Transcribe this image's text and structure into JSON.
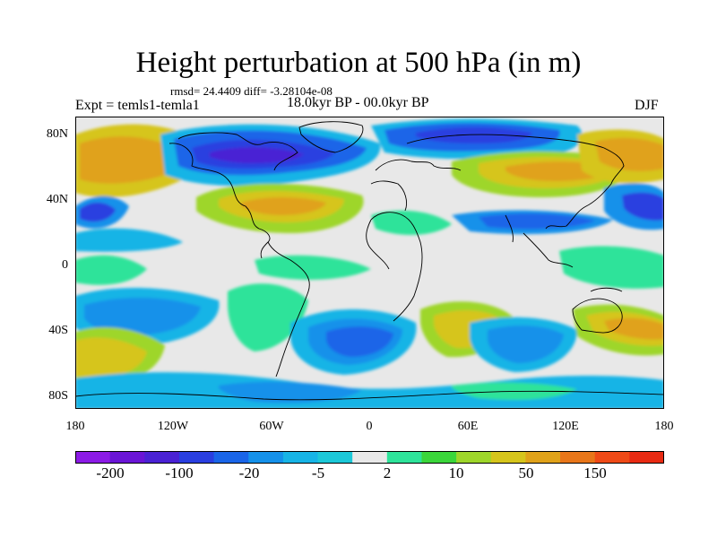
{
  "title": "Height perturbation at 500 hPa (in m)",
  "stats": "rmsd= 24.4409 diff= -3.28104e-08",
  "expt": "Expt = temls1-temla1",
  "period": "18.0kyr BP - 00.0kyr BP",
  "season": "DJF",
  "lat_labels": [
    "80N",
    "40N",
    "0",
    "40S",
    "80S"
  ],
  "lon_labels": [
    "180",
    "120W",
    "60W",
    "0",
    "60E",
    "120E",
    "180"
  ],
  "colorbar": {
    "colors": [
      "#8c1be6",
      "#6a15d6",
      "#4a22d4",
      "#2a3fe0",
      "#1a65e8",
      "#1591ea",
      "#17b4e6",
      "#1cc8d8",
      "#e8e8e8",
      "#2ee39a",
      "#3bd63b",
      "#9ed62a",
      "#d6c51c",
      "#e0a21a",
      "#e8761a",
      "#ef4a17",
      "#e82a12"
    ],
    "tick_labels": [
      "-200",
      "-100",
      "-20",
      "-5",
      "2",
      "10",
      "50",
      "150"
    ]
  }
}
